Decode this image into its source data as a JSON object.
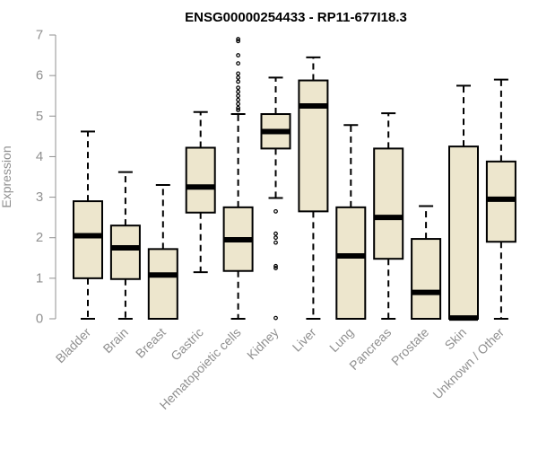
{
  "chart_data": {
    "type": "boxplot",
    "title": "ENSG00000254433 - RP11-677I18.3",
    "xlabel": "",
    "ylabel": "Expression",
    "ylim": [
      0,
      7
    ],
    "yticks": [
      0,
      1,
      2,
      3,
      4,
      5,
      6,
      7
    ],
    "colors": {
      "box_fill": "#ede6cd",
      "stroke": "#000000",
      "axis": "#909090"
    },
    "categories": [
      "Bladder",
      "Brain",
      "Breast",
      "Gastric",
      "Hematopoietic cells",
      "Kidney",
      "Liver",
      "Lung",
      "Pancreas",
      "Prostate",
      "Skin",
      "Unknown / Other"
    ],
    "boxes": [
      {
        "name": "Bladder",
        "min": 0,
        "q1": 1.0,
        "median": 2.05,
        "q3": 2.9,
        "max": 4.62,
        "outliers": []
      },
      {
        "name": "Brain",
        "min": 0,
        "q1": 0.98,
        "median": 1.75,
        "q3": 2.3,
        "max": 3.62,
        "outliers": []
      },
      {
        "name": "Breast",
        "min": 0,
        "q1": 0,
        "median": 1.08,
        "q3": 1.72,
        "max": 3.3,
        "outliers": []
      },
      {
        "name": "Gastric",
        "min": 1.15,
        "q1": 2.62,
        "median": 3.25,
        "q3": 4.22,
        "max": 5.1,
        "outliers": []
      },
      {
        "name": "Hematopoietic cells",
        "min": 0,
        "q1": 1.18,
        "median": 1.95,
        "q3": 2.75,
        "max": 5.05,
        "outliers": [
          5.15,
          5.2,
          5.3,
          5.4,
          5.5,
          5.6,
          5.7,
          5.85,
          5.95,
          6.05,
          6.3,
          6.5,
          6.85,
          6.9
        ]
      },
      {
        "name": "Kidney",
        "min": 2.98,
        "q1": 4.2,
        "median": 4.62,
        "q3": 5.05,
        "max": 5.95,
        "outliers": [
          2.65,
          2.1,
          2.0,
          1.88,
          1.3,
          1.25,
          0.02
        ]
      },
      {
        "name": "Liver",
        "min": 0,
        "q1": 2.65,
        "median": 5.25,
        "q3": 5.88,
        "max": 6.45,
        "outliers": []
      },
      {
        "name": "Lung",
        "min": 0,
        "q1": 0,
        "median": 1.55,
        "q3": 2.75,
        "max": 4.78,
        "outliers": []
      },
      {
        "name": "Pancreas",
        "min": 0,
        "q1": 1.48,
        "median": 2.5,
        "q3": 4.2,
        "max": 5.07,
        "outliers": []
      },
      {
        "name": "Prostate",
        "min": 0,
        "q1": 0,
        "median": 0.65,
        "q3": 1.97,
        "max": 2.78,
        "outliers": []
      },
      {
        "name": "Skin",
        "min": 0,
        "q1": 0,
        "median": 0.02,
        "q3": 4.25,
        "max": 5.75,
        "outliers": []
      },
      {
        "name": "Unknown / Other",
        "min": 0,
        "q1": 1.9,
        "median": 2.95,
        "q3": 3.88,
        "max": 5.9,
        "outliers": []
      }
    ]
  }
}
